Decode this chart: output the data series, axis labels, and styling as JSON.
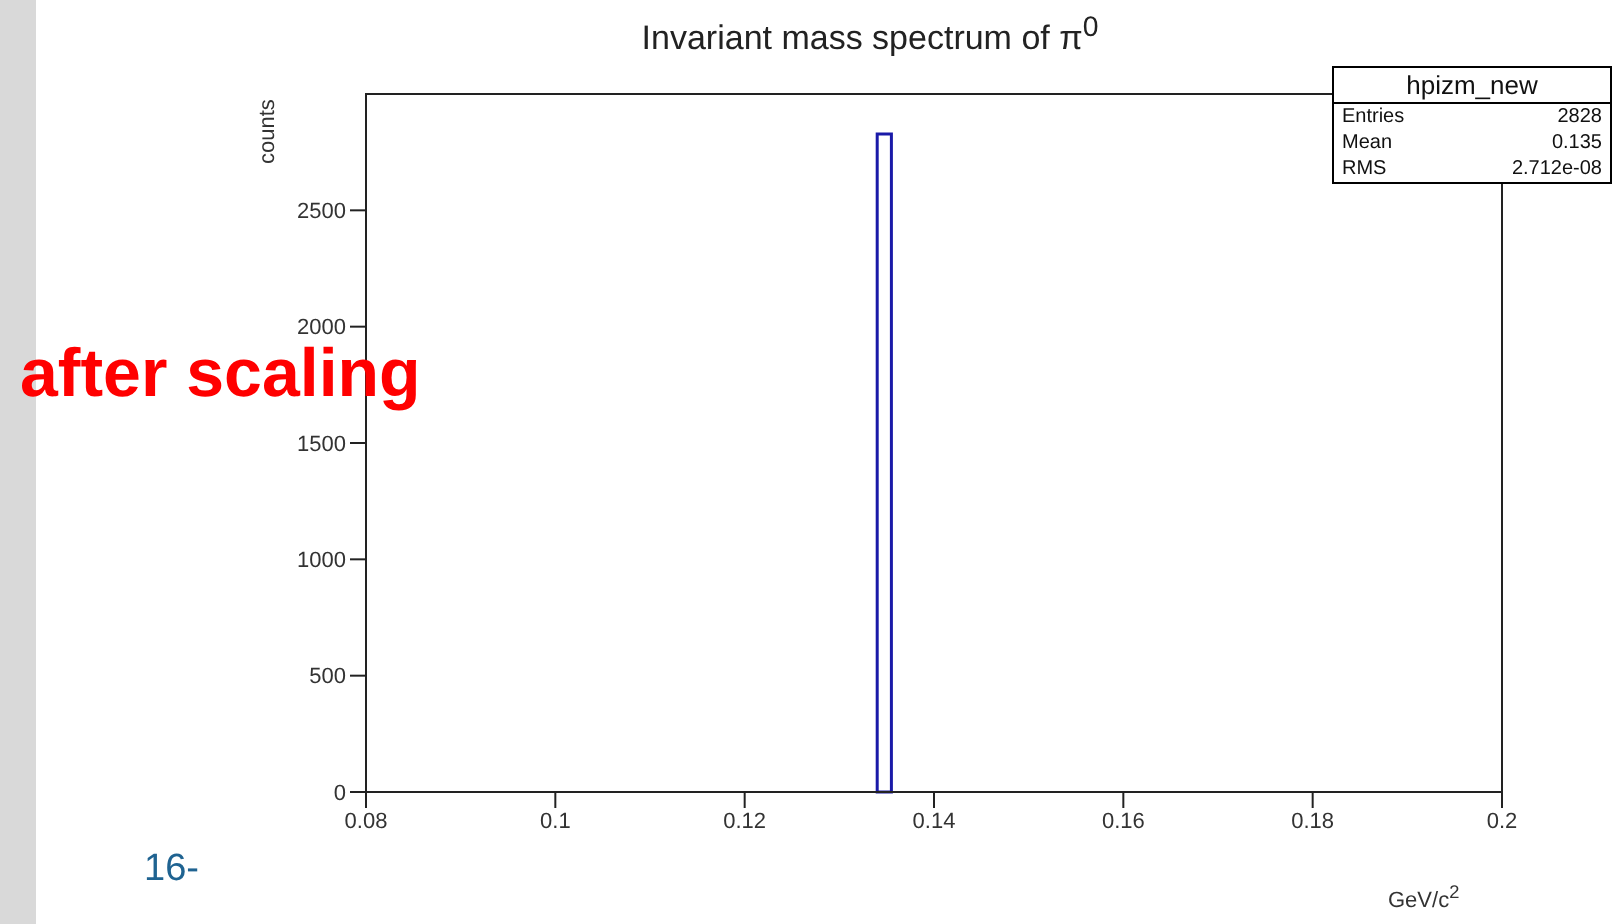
{
  "chart_data": {
    "type": "histogram",
    "title": "Invariant mass spectrum of π$^{0}$",
    "xlabel": "GeV/c$^{2}$",
    "ylabel": "counts",
    "bins": [
      0.134,
      0.1355
    ],
    "values": [
      2828
    ],
    "color": "#1a1aa8",
    "xlim": [
      0.08,
      0.2
    ],
    "xticks": [
      0.08,
      0.1,
      0.12,
      0.14,
      0.16,
      0.18,
      0.2
    ],
    "ylim": [
      0,
      3000
    ],
    "yticks": [
      0,
      500,
      1000,
      1500,
      2000,
      2500
    ],
    "annotations": [
      "after scaling",
      "16-",
      "hpizm_new",
      "Entries 2828",
      "Mean 0.135",
      "RMS 2.712e-08"
    ]
  }
}
